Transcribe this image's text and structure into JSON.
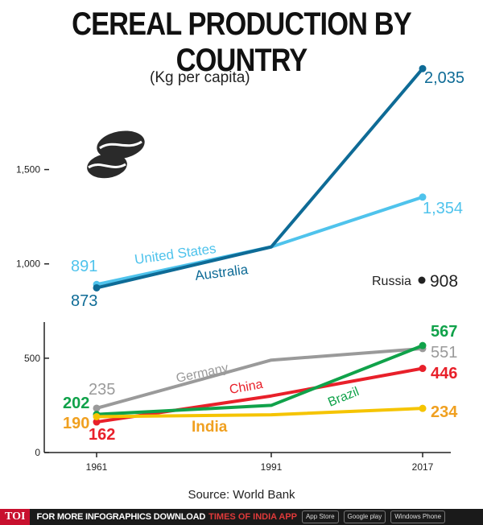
{
  "title": "CEREAL PRODUCTION BY COUNTRY",
  "subtitle": "(Kg per capita)",
  "source": "Source: World Bank",
  "footer": {
    "logo": "TOI",
    "promo": "FOR MORE INFOGRAPHICS DOWNLOAD",
    "brand": "TIMES OF INDIA APP",
    "stores": [
      "App Store",
      "Google play",
      "Windows Phone"
    ]
  },
  "icon": "coffee-beans-icon",
  "chart_data": {
    "type": "line",
    "x": [
      1961,
      1991,
      2017
    ],
    "ylim": [
      0,
      2100
    ],
    "yticks": [
      0,
      500,
      1000,
      1500
    ],
    "ytick_labels": [
      "0",
      "500",
      "1,000",
      "1,500"
    ],
    "grid": false,
    "series": [
      {
        "name": "United States",
        "color": "#4fc3ec",
        "values": [
          891,
          1090,
          1354
        ],
        "start_label": "891",
        "end_label": "1,354"
      },
      {
        "name": "Australia",
        "color": "#0e6b96",
        "values": [
          873,
          1090,
          2035
        ],
        "start_label": "873",
        "end_label": "2,035"
      },
      {
        "name": "Germany",
        "color": "#9a9a9a",
        "values": [
          235,
          490,
          551
        ],
        "start_label": "235",
        "end_label": "551"
      },
      {
        "name": "China",
        "color": "#e8202a",
        "values": [
          162,
          300,
          446
        ],
        "start_label": "162",
        "end_label": "446"
      },
      {
        "name": "Brazil",
        "color": "#10a24a",
        "values": [
          202,
          250,
          567
        ],
        "start_label": "202",
        "end_label": "567"
      },
      {
        "name": "India",
        "color": "#f5c400",
        "values": [
          190,
          200,
          234
        ],
        "start_label": "190",
        "end_label": "234"
      }
    ],
    "annotations": [
      {
        "name": "Russia",
        "value": 908,
        "value_label": "908"
      }
    ]
  }
}
